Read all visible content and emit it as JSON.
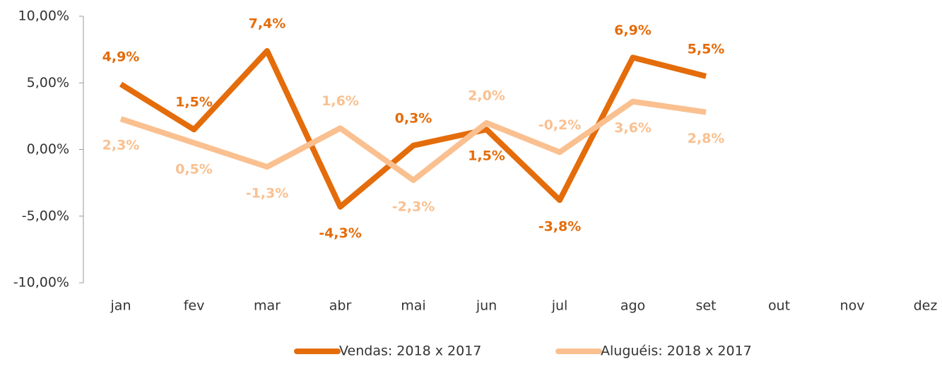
{
  "chart_data": {
    "type": "line",
    "categories": [
      "jan",
      "fev",
      "mar",
      "abr",
      "mai",
      "jun",
      "jul",
      "ago",
      "set",
      "out",
      "nov",
      "dez"
    ],
    "series": [
      {
        "name": "Vendas: 2018 x 2017",
        "color": "#e46c0a",
        "values": [
          4.9,
          1.5,
          7.4,
          -4.3,
          0.3,
          1.5,
          -3.8,
          6.9,
          5.5,
          null,
          null,
          null
        ],
        "value_labels": [
          "4,9%",
          "1,5%",
          "7,4%",
          "-4,3%",
          "0,3%",
          "1,5%",
          "-3,8%",
          "6,9%",
          "5,5%",
          null,
          null,
          null
        ]
      },
      {
        "name": "Aluguéis: 2018 x 2017",
        "color": "#fac090",
        "values": [
          2.3,
          0.5,
          -1.3,
          1.6,
          -2.3,
          2.0,
          -0.2,
          3.6,
          2.8,
          null,
          null,
          null
        ],
        "value_labels": [
          "2,3%",
          "0,5%",
          "-1,3%",
          "1,6%",
          "-2,3%",
          "2,0%",
          "-0,2%",
          "3,6%",
          "2,8%",
          null,
          null,
          null
        ]
      }
    ],
    "ylim": [
      -10,
      10
    ],
    "yticks": [
      {
        "value": -10,
        "label": "-10,00%"
      },
      {
        "value": -5,
        "label": "-5,00%"
      },
      {
        "value": 0,
        "label": "0,00%"
      },
      {
        "value": 5,
        "label": "5,00%"
      },
      {
        "value": 10,
        "label": "10,00%"
      }
    ],
    "legend": "bottom"
  }
}
